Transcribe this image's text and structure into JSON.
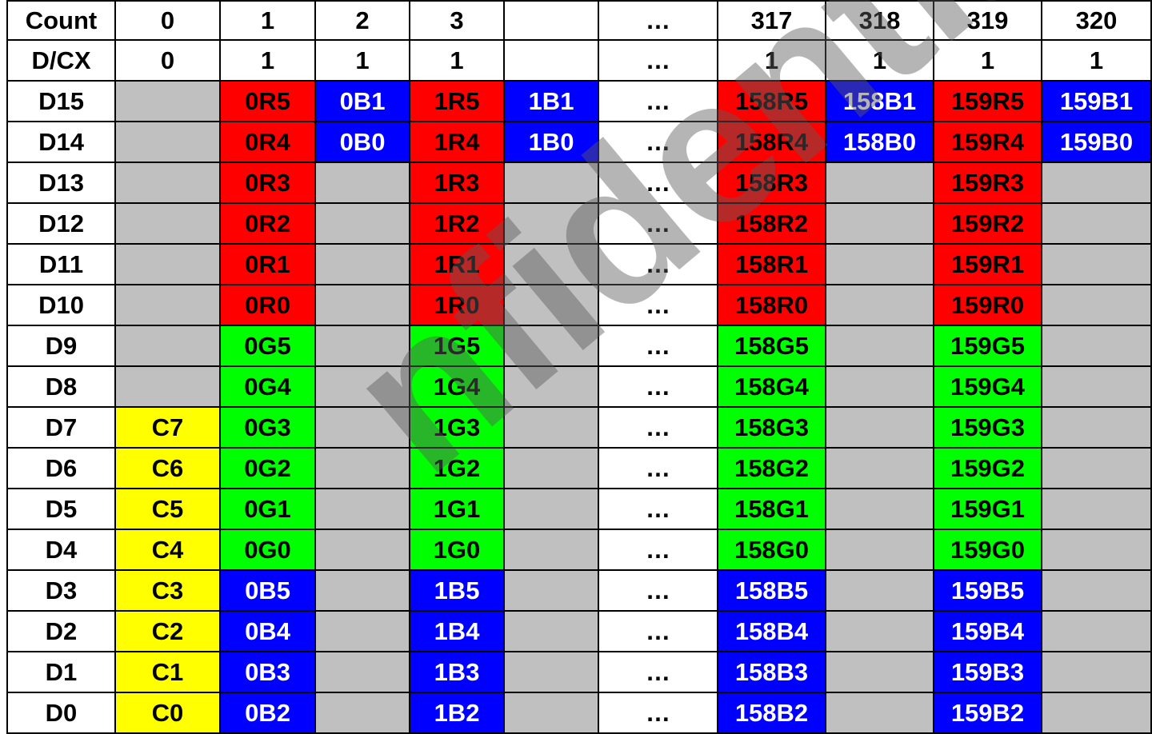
{
  "table": {
    "columns": [
      "Count",
      "0",
      "1",
      "2",
      "3",
      "",
      "…",
      "317",
      "318",
      "319",
      "320"
    ],
    "rows": [
      {
        "label": "D/CX",
        "cells": [
          "0",
          "1",
          "1",
          "1",
          "",
          "…",
          "1",
          "1",
          "1",
          "1"
        ]
      },
      {
        "label": "D15",
        "cells": [
          "",
          "0R5",
          "0B1",
          "1R5",
          "1B1",
          "…",
          "158R5",
          "158B1",
          "159R5",
          "159B1"
        ]
      },
      {
        "label": "D14",
        "cells": [
          "",
          "0R4",
          "0B0",
          "1R4",
          "1B0",
          "…",
          "158R4",
          "158B0",
          "159R4",
          "159B0"
        ]
      },
      {
        "label": "D13",
        "cells": [
          "",
          "0R3",
          "",
          "1R3",
          "",
          "…",
          "158R3",
          "",
          "159R3",
          ""
        ]
      },
      {
        "label": "D12",
        "cells": [
          "",
          "0R2",
          "",
          "1R2",
          "",
          "…",
          "158R2",
          "",
          "159R2",
          ""
        ]
      },
      {
        "label": "D11",
        "cells": [
          "",
          "0R1",
          "",
          "1R1",
          "",
          "…",
          "158R1",
          "",
          "159R1",
          ""
        ]
      },
      {
        "label": "D10",
        "cells": [
          "",
          "0R0",
          "",
          "1R0",
          "",
          "…",
          "158R0",
          "",
          "159R0",
          ""
        ]
      },
      {
        "label": "D9",
        "cells": [
          "",
          "0G5",
          "",
          "1G5",
          "",
          "…",
          "158G5",
          "",
          "159G5",
          ""
        ]
      },
      {
        "label": "D8",
        "cells": [
          "",
          "0G4",
          "",
          "1G4",
          "",
          "…",
          "158G4",
          "",
          "159G4",
          ""
        ]
      },
      {
        "label": "D7",
        "cells": [
          "C7",
          "0G3",
          "",
          "1G3",
          "",
          "…",
          "158G3",
          "",
          "159G3",
          ""
        ]
      },
      {
        "label": "D6",
        "cells": [
          "C6",
          "0G2",
          "",
          "1G2",
          "",
          "…",
          "158G2",
          "",
          "159G2",
          ""
        ]
      },
      {
        "label": "D5",
        "cells": [
          "C5",
          "0G1",
          "",
          "1G1",
          "",
          "…",
          "158G1",
          "",
          "159G1",
          ""
        ]
      },
      {
        "label": "D4",
        "cells": [
          "C4",
          "0G0",
          "",
          "1G0",
          "",
          "…",
          "158G0",
          "",
          "159G0",
          ""
        ]
      },
      {
        "label": "D3",
        "cells": [
          "C3",
          "0B5",
          "",
          "1B5",
          "",
          "…",
          "158B5",
          "",
          "159B5",
          ""
        ]
      },
      {
        "label": "D2",
        "cells": [
          "C2",
          "0B4",
          "",
          "1B4",
          "",
          "…",
          "158B4",
          "",
          "159B4",
          ""
        ]
      },
      {
        "label": "D1",
        "cells": [
          "C1",
          "0B3",
          "",
          "1B3",
          "",
          "…",
          "158B3",
          "",
          "159B3",
          ""
        ]
      },
      {
        "label": "D0",
        "cells": [
          "C0",
          "0B2",
          "",
          "1B2",
          "",
          "…",
          "158B2",
          "",
          "159B2",
          ""
        ]
      }
    ]
  },
  "watermark": "nfidentia",
  "colors": {
    "white": "#ffffff",
    "gray": "#c0c0c0",
    "red": "#ff0000",
    "green": "#00ff00",
    "blue": "#0000ff",
    "yellow": "#ffff00"
  }
}
